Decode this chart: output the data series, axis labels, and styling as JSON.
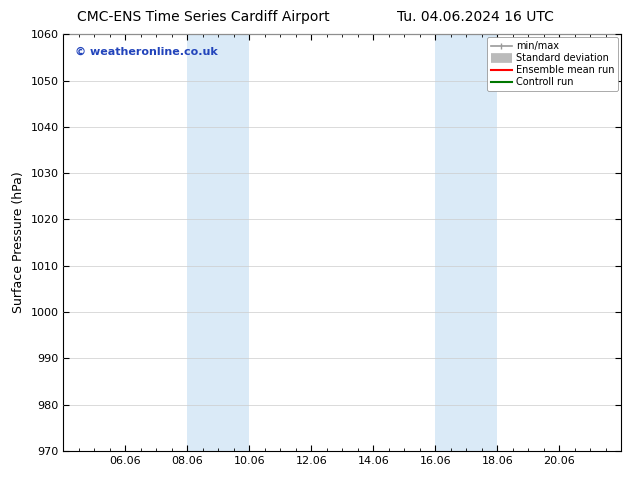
{
  "title_left": "CMC-ENS Time Series Cardiff Airport",
  "title_right": "Tu. 04.06.2024 16 UTC",
  "ylabel": "Surface Pressure (hPa)",
  "ylim": [
    970,
    1060
  ],
  "yticks": [
    970,
    980,
    990,
    1000,
    1010,
    1020,
    1030,
    1040,
    1050,
    1060
  ],
  "xtick_labels": [
    "06.06",
    "08.06",
    "10.06",
    "12.06",
    "14.06",
    "16.06",
    "18.06",
    "20.06"
  ],
  "xtick_positions": [
    2,
    4,
    6,
    8,
    10,
    12,
    14,
    16
  ],
  "xlim": [
    0,
    18
  ],
  "shaded_bands": [
    {
      "x_start": 4.0,
      "x_end": 6.0
    },
    {
      "x_start": 12.0,
      "x_end": 14.0
    }
  ],
  "shaded_color": "#daeaf7",
  "watermark": "© weatheronline.co.uk",
  "watermark_color": "#2244bb",
  "background_color": "#ffffff",
  "legend_entries": [
    {
      "label": "min/max",
      "color": "#999999",
      "lw": 1.2
    },
    {
      "label": "Standard deviation",
      "color": "#bbbbbb",
      "lw": 7
    },
    {
      "label": "Ensemble mean run",
      "color": "#ff0000",
      "lw": 1.5
    },
    {
      "label": "Controll run",
      "color": "#007700",
      "lw": 1.5
    }
  ],
  "title_fontsize": 10,
  "ylabel_fontsize": 9,
  "tick_fontsize": 8,
  "watermark_fontsize": 8,
  "figsize": [
    6.34,
    4.9
  ],
  "dpi": 100
}
